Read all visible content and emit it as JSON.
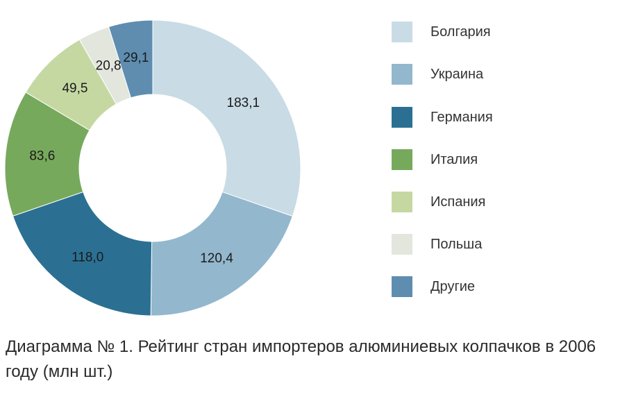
{
  "chart_data": {
    "type": "pie",
    "donut": true,
    "categories": [
      "Болгария",
      "Украина",
      "Германия",
      "Италия",
      "Испания",
      "Польша",
      "Другие"
    ],
    "values": [
      183.1,
      120.4,
      118.0,
      83.6,
      49.5,
      20.8,
      29.1
    ],
    "data_labels": [
      "183,1",
      "120,4",
      "118,0",
      "83,6",
      "49,5",
      "20,8",
      "29,1"
    ],
    "colors": [
      "#c9dbe5",
      "#93b7cd",
      "#2b7093",
      "#77a95c",
      "#c5d8a2",
      "#e3e6dd",
      "#5e8db0"
    ],
    "title": "Диаграмма № 1. Рейтинг стран импортеров алюминиевых колпачков в 2006 году (млн шт.)",
    "legend_position": "right",
    "start": "top",
    "direction": "clockwise"
  },
  "legend": {
    "items": [
      {
        "label": "Болгария"
      },
      {
        "label": "Украина"
      },
      {
        "label": "Германия"
      },
      {
        "label": "Италия"
      },
      {
        "label": "Испания"
      },
      {
        "label": "Польша"
      },
      {
        "label": "Другие"
      }
    ]
  },
  "caption": {
    "text": "Диаграмма № 1. Рейтинг стран импортеров алюминиевых колпачков в 2006 году (млн шт.)"
  }
}
